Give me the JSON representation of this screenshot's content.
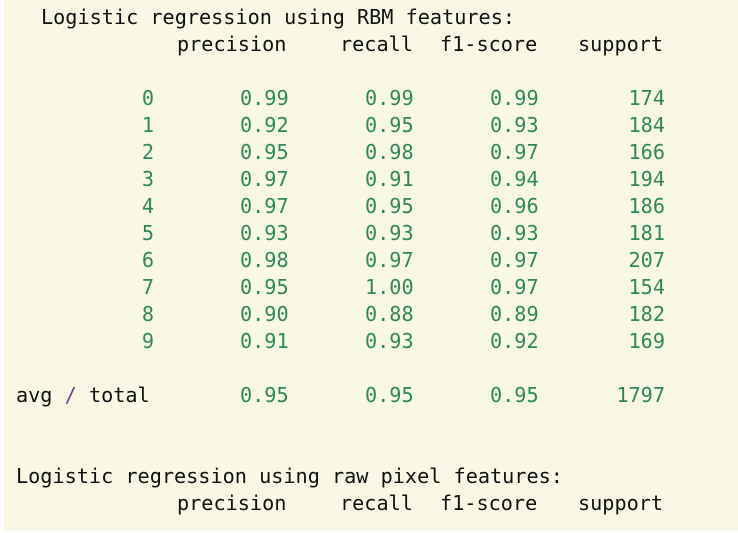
{
  "reports": [
    {
      "title": "Logistic regression using RBM features:",
      "headers": [
        "precision",
        "recall",
        "f1-score",
        "support"
      ],
      "rows": [
        {
          "label": "0",
          "precision": "0.99",
          "recall": "0.99",
          "f1": "0.99",
          "support": "174"
        },
        {
          "label": "1",
          "precision": "0.92",
          "recall": "0.95",
          "f1": "0.93",
          "support": "184"
        },
        {
          "label": "2",
          "precision": "0.95",
          "recall": "0.98",
          "f1": "0.97",
          "support": "166"
        },
        {
          "label": "3",
          "precision": "0.97",
          "recall": "0.91",
          "f1": "0.94",
          "support": "194"
        },
        {
          "label": "4",
          "precision": "0.97",
          "recall": "0.95",
          "f1": "0.96",
          "support": "186"
        },
        {
          "label": "5",
          "precision": "0.93",
          "recall": "0.93",
          "f1": "0.93",
          "support": "181"
        },
        {
          "label": "6",
          "precision": "0.98",
          "recall": "0.97",
          "f1": "0.97",
          "support": "207"
        },
        {
          "label": "7",
          "precision": "0.95",
          "recall": "1.00",
          "f1": "0.97",
          "support": "154"
        },
        {
          "label": "8",
          "precision": "0.90",
          "recall": "0.88",
          "f1": "0.89",
          "support": "182"
        },
        {
          "label": "9",
          "precision": "0.91",
          "recall": "0.93",
          "f1": "0.92",
          "support": "169"
        }
      ],
      "avg": {
        "label_left": "avg",
        "label_sep": "/",
        "label_right": "total",
        "precision": "0.95",
        "recall": "0.95",
        "f1": "0.95",
        "support": "1797"
      }
    },
    {
      "title": "Logistic regression using raw pixel features:",
      "headers": [
        "precision",
        "recall",
        "f1-score",
        "support"
      ]
    }
  ],
  "colors": {
    "background": "#f8f8e4",
    "text": "#111111",
    "number": "#2f8a55",
    "operator": "#7a3d8f"
  }
}
